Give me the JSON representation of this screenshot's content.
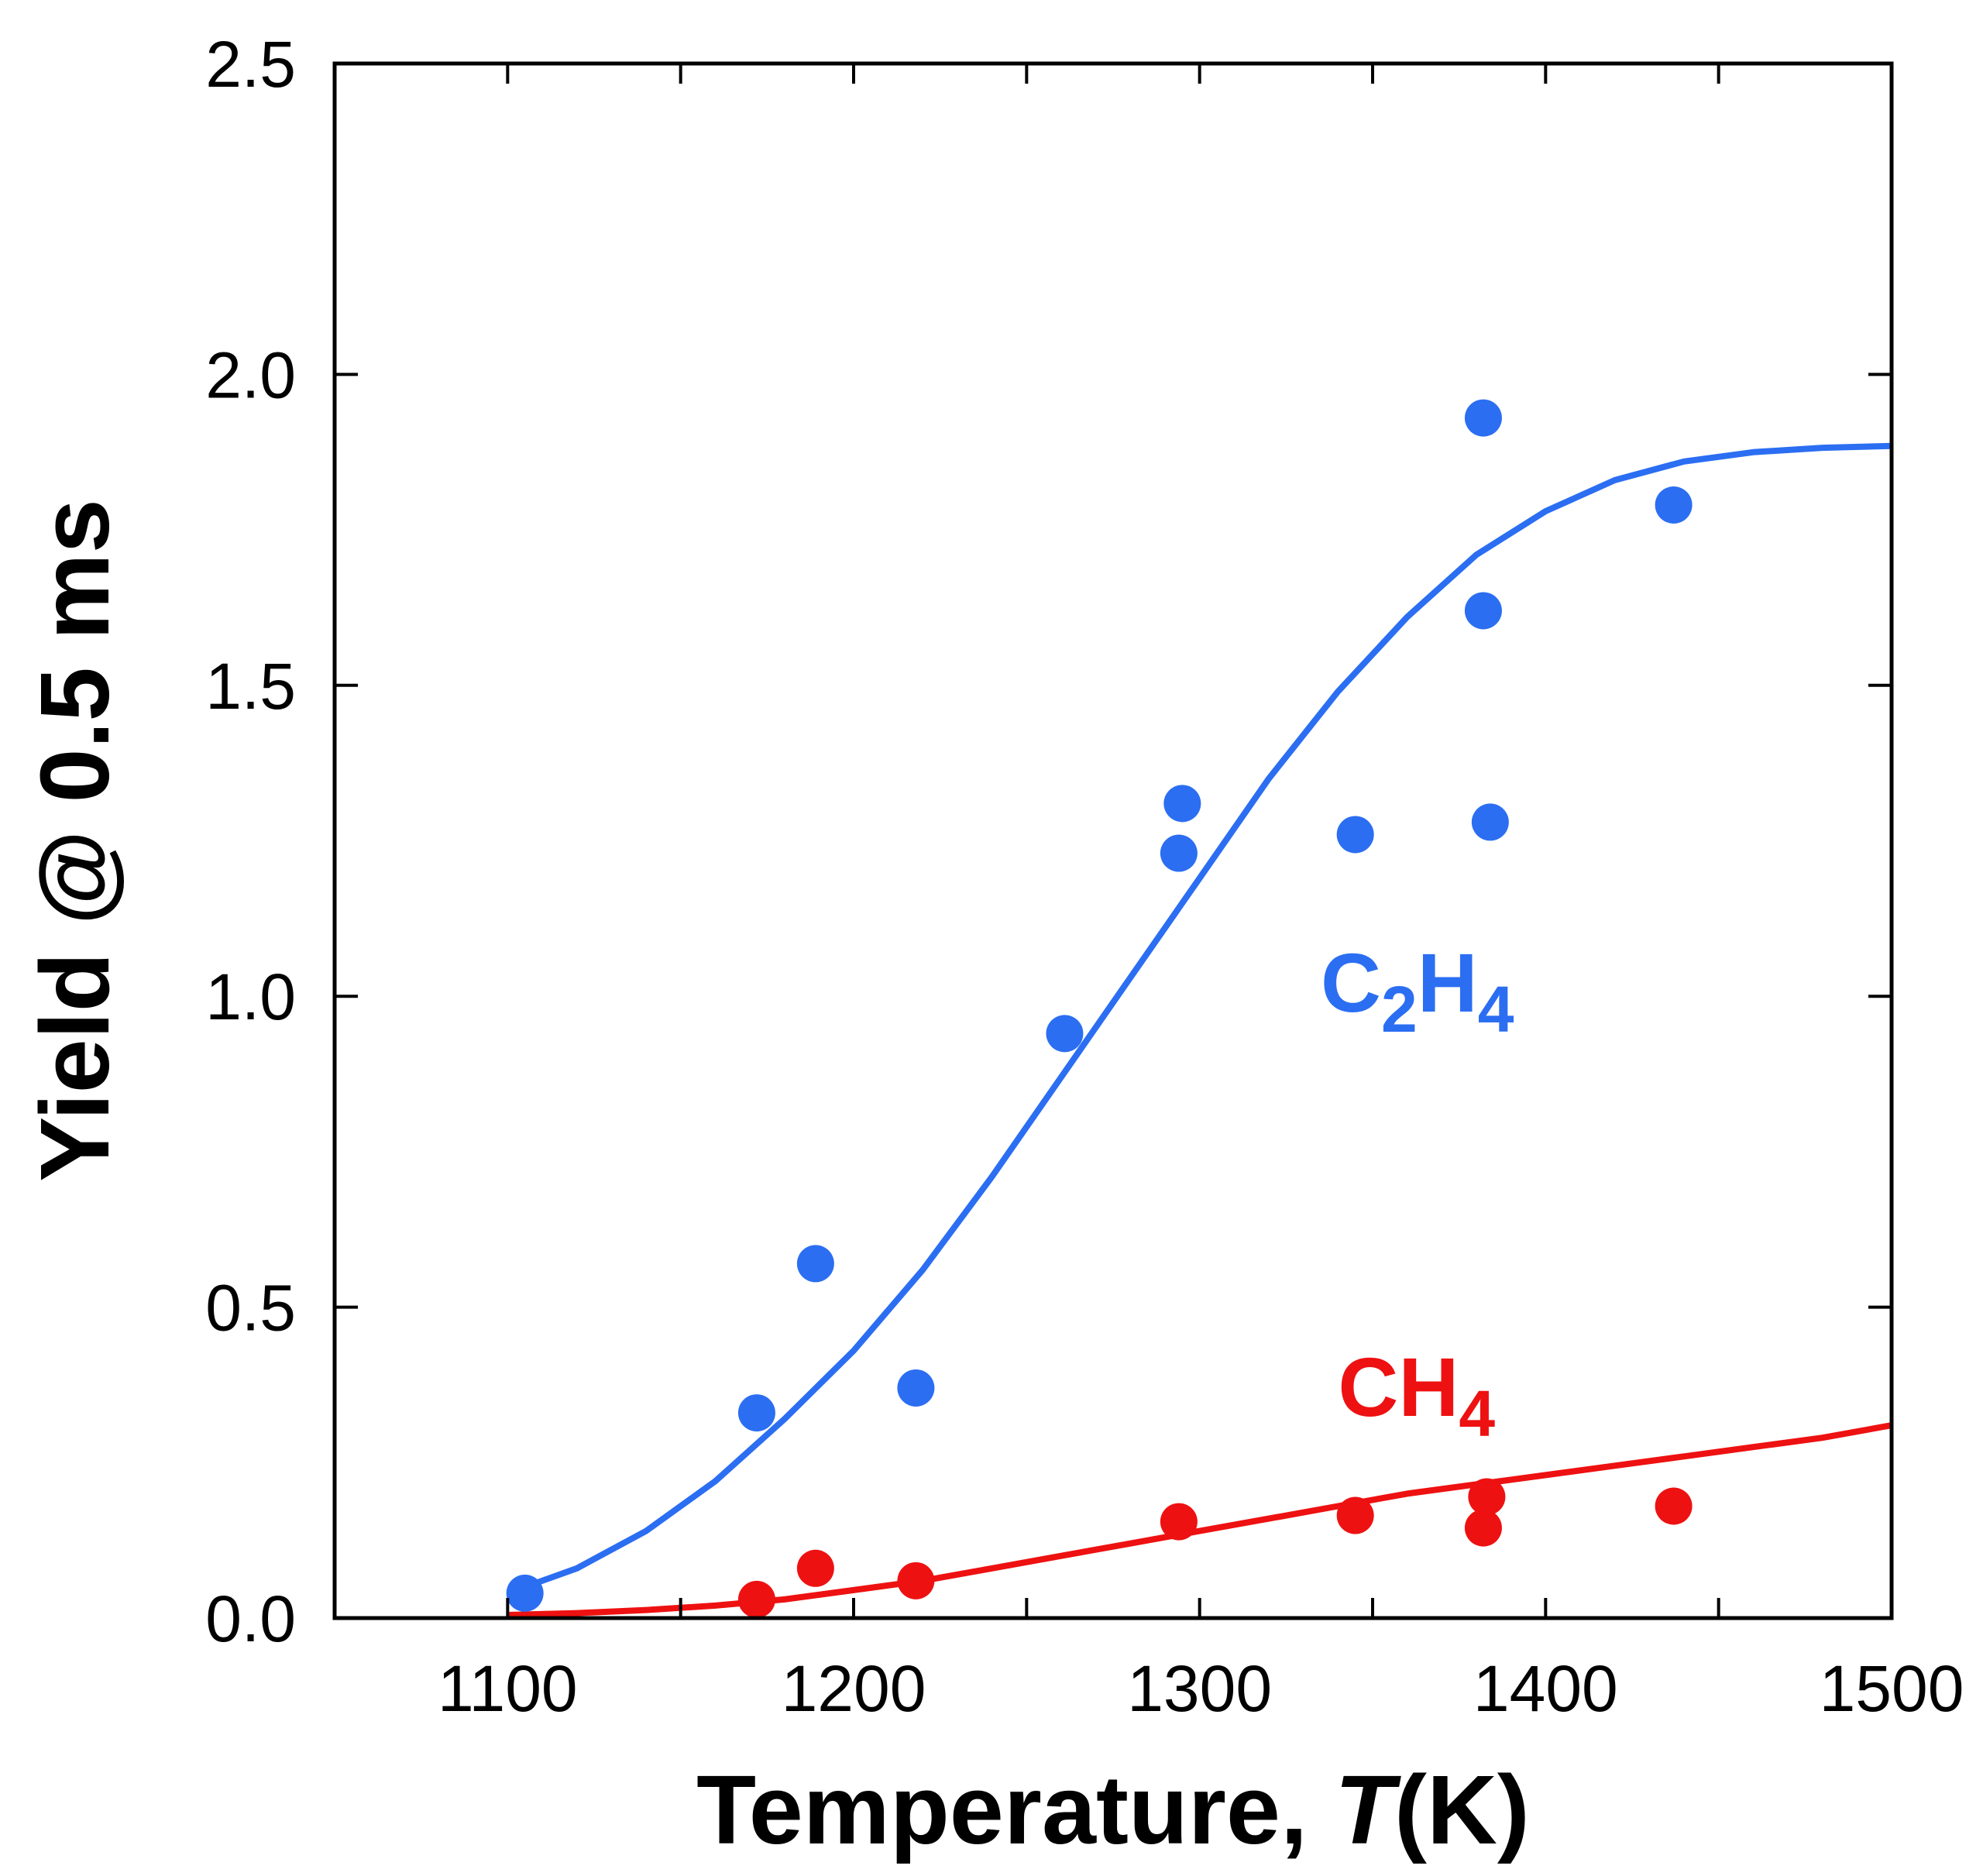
{
  "chart_data": {
    "type": "scatter",
    "title": "",
    "xlabel": {
      "prefix": "Temperature, ",
      "variable": "T",
      "suffix": "(K)"
    },
    "ylabel": "Yield @ 0.5 ms",
    "xlim": [
      1050,
      1500
    ],
    "ylim": [
      0,
      2.5
    ],
    "xticks": [
      1100,
      1200,
      1300,
      1400,
      1500
    ],
    "xtick_labels": [
      "1100",
      "1200",
      "1300",
      "1400",
      "1500"
    ],
    "yticks": [
      0,
      0.5,
      1.0,
      1.5,
      2.0,
      2.5
    ],
    "ytick_labels": [
      "0.0",
      "0.5",
      "1.0",
      "1.5",
      "2.0",
      "2.5"
    ],
    "grid": false,
    "series": [
      {
        "name": "C2H4",
        "label_main": "C",
        "label_sub1": "2",
        "label_mid": "H",
        "label_sub2": "4",
        "label_x": 1335,
        "label_y": 1.0,
        "color": "#2b6ef2",
        "points": [
          {
            "x": 1105,
            "y": 0.04
          },
          {
            "x": 1172,
            "y": 0.33
          },
          {
            "x": 1189,
            "y": 0.57
          },
          {
            "x": 1218,
            "y": 0.37
          },
          {
            "x": 1261,
            "y": 0.94
          },
          {
            "x": 1294,
            "y": 1.23
          },
          {
            "x": 1295,
            "y": 1.31
          },
          {
            "x": 1345,
            "y": 1.26
          },
          {
            "x": 1382,
            "y": 1.93
          },
          {
            "x": 1382,
            "y": 1.62
          },
          {
            "x": 1384,
            "y": 1.28
          },
          {
            "x": 1437,
            "y": 1.79
          }
        ],
        "fit": [
          {
            "x": 1100,
            "y": 0.04
          },
          {
            "x": 1120,
            "y": 0.08
          },
          {
            "x": 1140,
            "y": 0.14
          },
          {
            "x": 1160,
            "y": 0.22
          },
          {
            "x": 1180,
            "y": 0.32
          },
          {
            "x": 1200,
            "y": 0.43
          },
          {
            "x": 1220,
            "y": 0.56
          },
          {
            "x": 1240,
            "y": 0.71
          },
          {
            "x": 1260,
            "y": 0.87
          },
          {
            "x": 1280,
            "y": 1.03
          },
          {
            "x": 1300,
            "y": 1.19
          },
          {
            "x": 1320,
            "y": 1.35
          },
          {
            "x": 1340,
            "y": 1.49
          },
          {
            "x": 1360,
            "y": 1.61
          },
          {
            "x": 1380,
            "y": 1.71
          },
          {
            "x": 1400,
            "y": 1.78
          },
          {
            "x": 1420,
            "y": 1.83
          },
          {
            "x": 1440,
            "y": 1.86
          },
          {
            "x": 1460,
            "y": 1.875
          },
          {
            "x": 1480,
            "y": 1.882
          },
          {
            "x": 1500,
            "y": 1.885
          }
        ]
      },
      {
        "name": "CH4",
        "label_main": "CH",
        "label_sub1": "4",
        "label_x": 1340,
        "label_y": 0.35,
        "color": "#ee1111",
        "points": [
          {
            "x": 1172,
            "y": 0.03
          },
          {
            "x": 1189,
            "y": 0.08
          },
          {
            "x": 1218,
            "y": 0.06
          },
          {
            "x": 1294,
            "y": 0.155
          },
          {
            "x": 1345,
            "y": 0.165
          },
          {
            "x": 1382,
            "y": 0.145
          },
          {
            "x": 1383,
            "y": 0.195
          },
          {
            "x": 1437,
            "y": 0.18
          }
        ],
        "fit": [
          {
            "x": 1100,
            "y": 0.005
          },
          {
            "x": 1120,
            "y": 0.008
          },
          {
            "x": 1140,
            "y": 0.013
          },
          {
            "x": 1160,
            "y": 0.02
          },
          {
            "x": 1180,
            "y": 0.03
          },
          {
            "x": 1200,
            "y": 0.045
          },
          {
            "x": 1220,
            "y": 0.06
          },
          {
            "x": 1240,
            "y": 0.08
          },
          {
            "x": 1260,
            "y": 0.1
          },
          {
            "x": 1280,
            "y": 0.12
          },
          {
            "x": 1300,
            "y": 0.14
          },
          {
            "x": 1320,
            "y": 0.16
          },
          {
            "x": 1340,
            "y": 0.18
          },
          {
            "x": 1360,
            "y": 0.2
          },
          {
            "x": 1380,
            "y": 0.215
          },
          {
            "x": 1400,
            "y": 0.23
          },
          {
            "x": 1420,
            "y": 0.245
          },
          {
            "x": 1440,
            "y": 0.26
          },
          {
            "x": 1460,
            "y": 0.275
          },
          {
            "x": 1480,
            "y": 0.29
          },
          {
            "x": 1500,
            "y": 0.31
          }
        ]
      }
    ]
  }
}
